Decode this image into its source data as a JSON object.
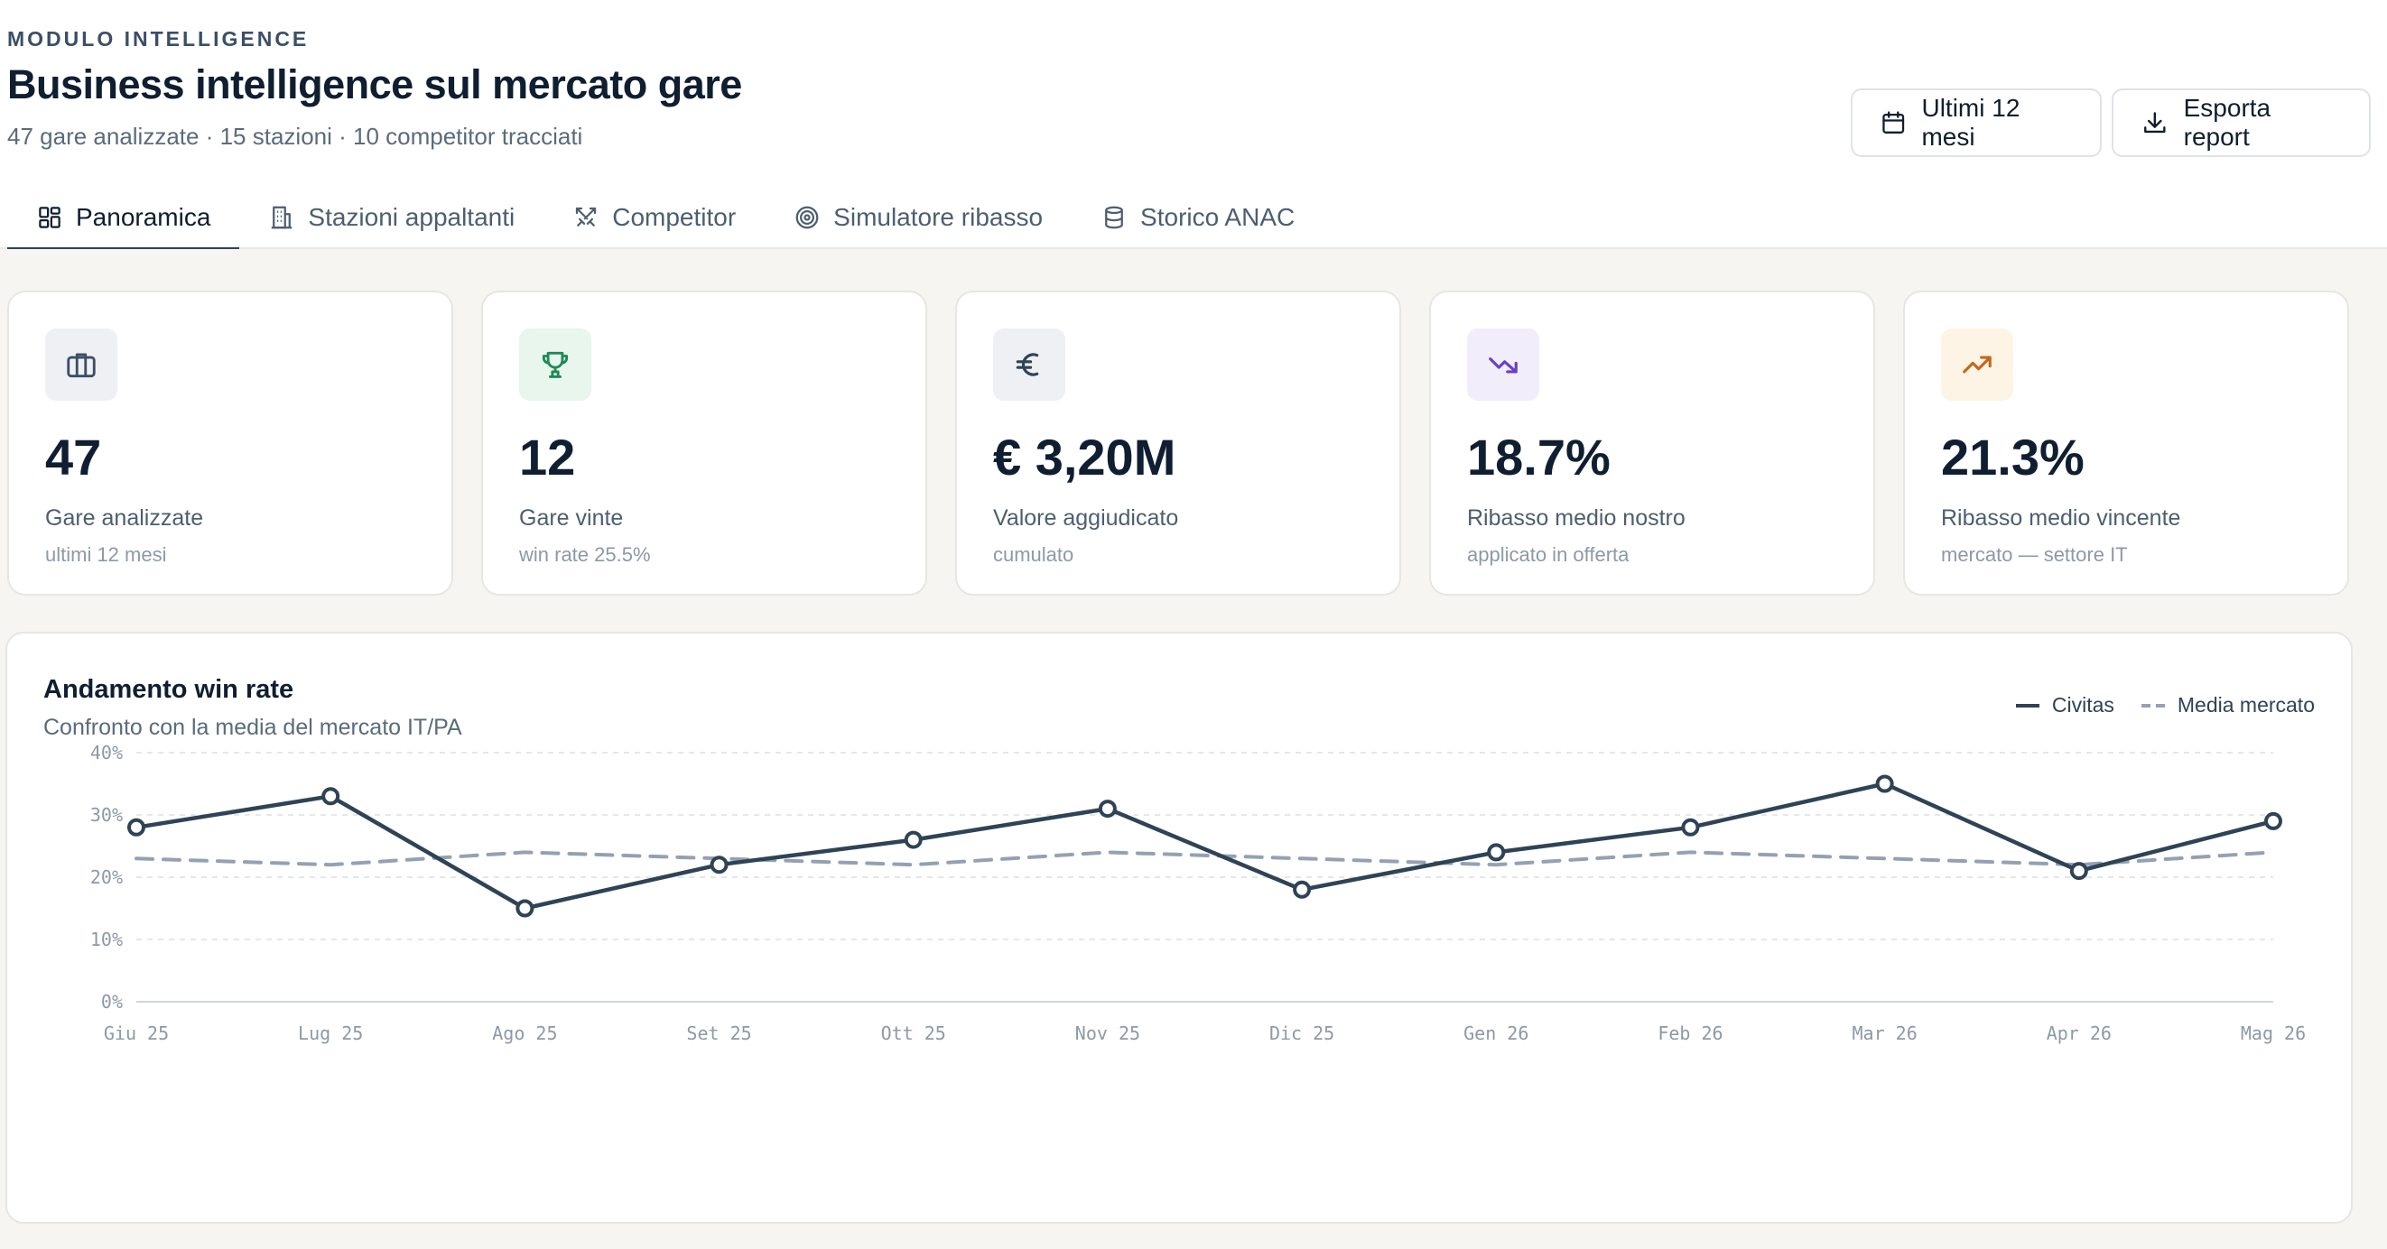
{
  "header": {
    "eyebrow": "MODULO INTELLIGENCE",
    "title": "Business intelligence sul mercato gare",
    "subtitle": "47 gare analizzate · 15 stazioni · 10 competitor tracciati",
    "period_button": "Ultimi 12 mesi",
    "export_button": "Esporta report"
  },
  "tabs": [
    {
      "label": "Panoramica",
      "icon": "dashboard-grid-icon",
      "active": true
    },
    {
      "label": "Stazioni appaltanti",
      "icon": "building-icon",
      "active": false
    },
    {
      "label": "Competitor",
      "icon": "swords-icon",
      "active": false
    },
    {
      "label": "Simulatore ribasso",
      "icon": "target-icon",
      "active": false
    },
    {
      "label": "Storico ANAC",
      "icon": "database-icon",
      "active": false
    }
  ],
  "kpis": [
    {
      "value": "47",
      "label": "Gare analizzate",
      "sub": "ultimi 12 mesi",
      "icon": "briefcase-icon",
      "icon_bg": "#eef0f3",
      "icon_color": "#3b4f66"
    },
    {
      "value": "12",
      "label": "Gare vinte",
      "sub": "win rate 25.5%",
      "icon": "trophy-icon",
      "icon_bg": "#e8f6ee",
      "icon_color": "#1f8a55"
    },
    {
      "value": "€ 3,20M",
      "label": "Valore aggiudicato",
      "sub": "cumulato",
      "icon": "euro-icon",
      "icon_bg": "#eef0f3",
      "icon_color": "#2f4356"
    },
    {
      "value": "18.7%",
      "label": "Ribasso medio nostro",
      "sub": "applicato in offerta",
      "icon": "trending-down-icon",
      "icon_bg": "#f1edfb",
      "icon_color": "#6a3fc8"
    },
    {
      "value": "21.3%",
      "label": "Ribasso medio vincente",
      "sub": "mercato — settore IT",
      "icon": "trending-up-icon",
      "icon_bg": "#fdf4e6",
      "icon_color": "#c2691d"
    }
  ],
  "chart_card": {
    "title": "Andamento win rate",
    "subtitle": "Confronto con la media del mercato IT/PA"
  },
  "chart_data": {
    "type": "line",
    "x": [
      "Giu 25",
      "Lug 25",
      "Ago 25",
      "Set 25",
      "Ott 25",
      "Nov 25",
      "Dic 25",
      "Gen 26",
      "Feb 26",
      "Mar 26",
      "Apr 26",
      "Mag 26"
    ],
    "series": [
      {
        "name": "Civitas",
        "values": [
          28,
          33,
          15,
          22,
          26,
          31,
          18,
          24,
          28,
          35,
          21,
          29
        ],
        "color": "#2f4356",
        "style": "solid",
        "markers": true
      },
      {
        "name": "Media mercato",
        "values": [
          23,
          22,
          24,
          23,
          22,
          24,
          23,
          22,
          24,
          23,
          22,
          24
        ],
        "color": "#94a1b3",
        "style": "dashed",
        "markers": false
      }
    ],
    "ylim": [
      0,
      40
    ],
    "yticks": [
      "0%",
      "10%",
      "20%",
      "30%",
      "40%"
    ],
    "ytick_values": [
      0,
      10,
      20,
      30,
      40
    ],
    "grid": true,
    "legend": "top-right"
  },
  "colors": {
    "accent": "#2f4356",
    "page_bg": "#f6f5f2"
  }
}
